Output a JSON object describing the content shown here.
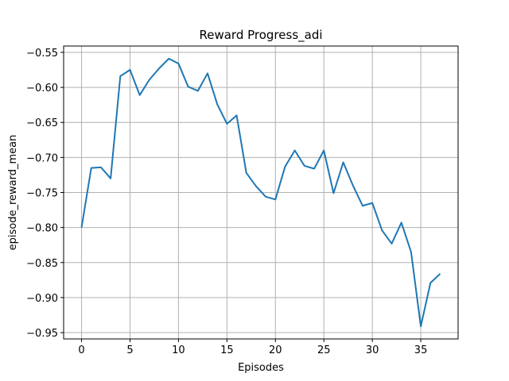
{
  "chart_data": {
    "type": "line",
    "title": "Reward Progress_adi",
    "xlabel": "Episodes",
    "ylabel": "episode_reward_mean",
    "xlim": [
      -1.85,
      38.85
    ],
    "ylim": [
      -0.959,
      -0.541
    ],
    "xticks": [
      0,
      5,
      10,
      15,
      20,
      25,
      30,
      35
    ],
    "yticks": [
      -0.95,
      -0.9,
      -0.85,
      -0.8,
      -0.75,
      -0.7,
      -0.65,
      -0.6,
      -0.55
    ],
    "grid": true,
    "series": [
      {
        "color": "#1f77b4",
        "x": [
          0,
          1,
          2,
          3,
          4,
          5,
          6,
          7,
          8,
          9,
          10,
          11,
          12,
          13,
          14,
          15,
          16,
          17,
          18,
          19,
          20,
          21,
          22,
          23,
          24,
          25,
          26,
          27,
          28,
          29,
          30,
          31,
          32,
          33,
          34,
          35,
          36,
          37
        ],
        "values": [
          -0.8,
          -0.715,
          -0.714,
          -0.73,
          -0.584,
          -0.575,
          -0.611,
          -0.589,
          -0.573,
          -0.559,
          -0.566,
          -0.599,
          -0.605,
          -0.58,
          -0.624,
          -0.652,
          -0.64,
          -0.722,
          -0.741,
          -0.756,
          -0.76,
          -0.713,
          -0.69,
          -0.712,
          -0.716,
          -0.69,
          -0.751,
          -0.707,
          -0.74,
          -0.769,
          -0.765,
          -0.804,
          -0.823,
          -0.793,
          -0.835,
          -0.941,
          -0.879,
          -0.866
        ]
      }
    ]
  }
}
